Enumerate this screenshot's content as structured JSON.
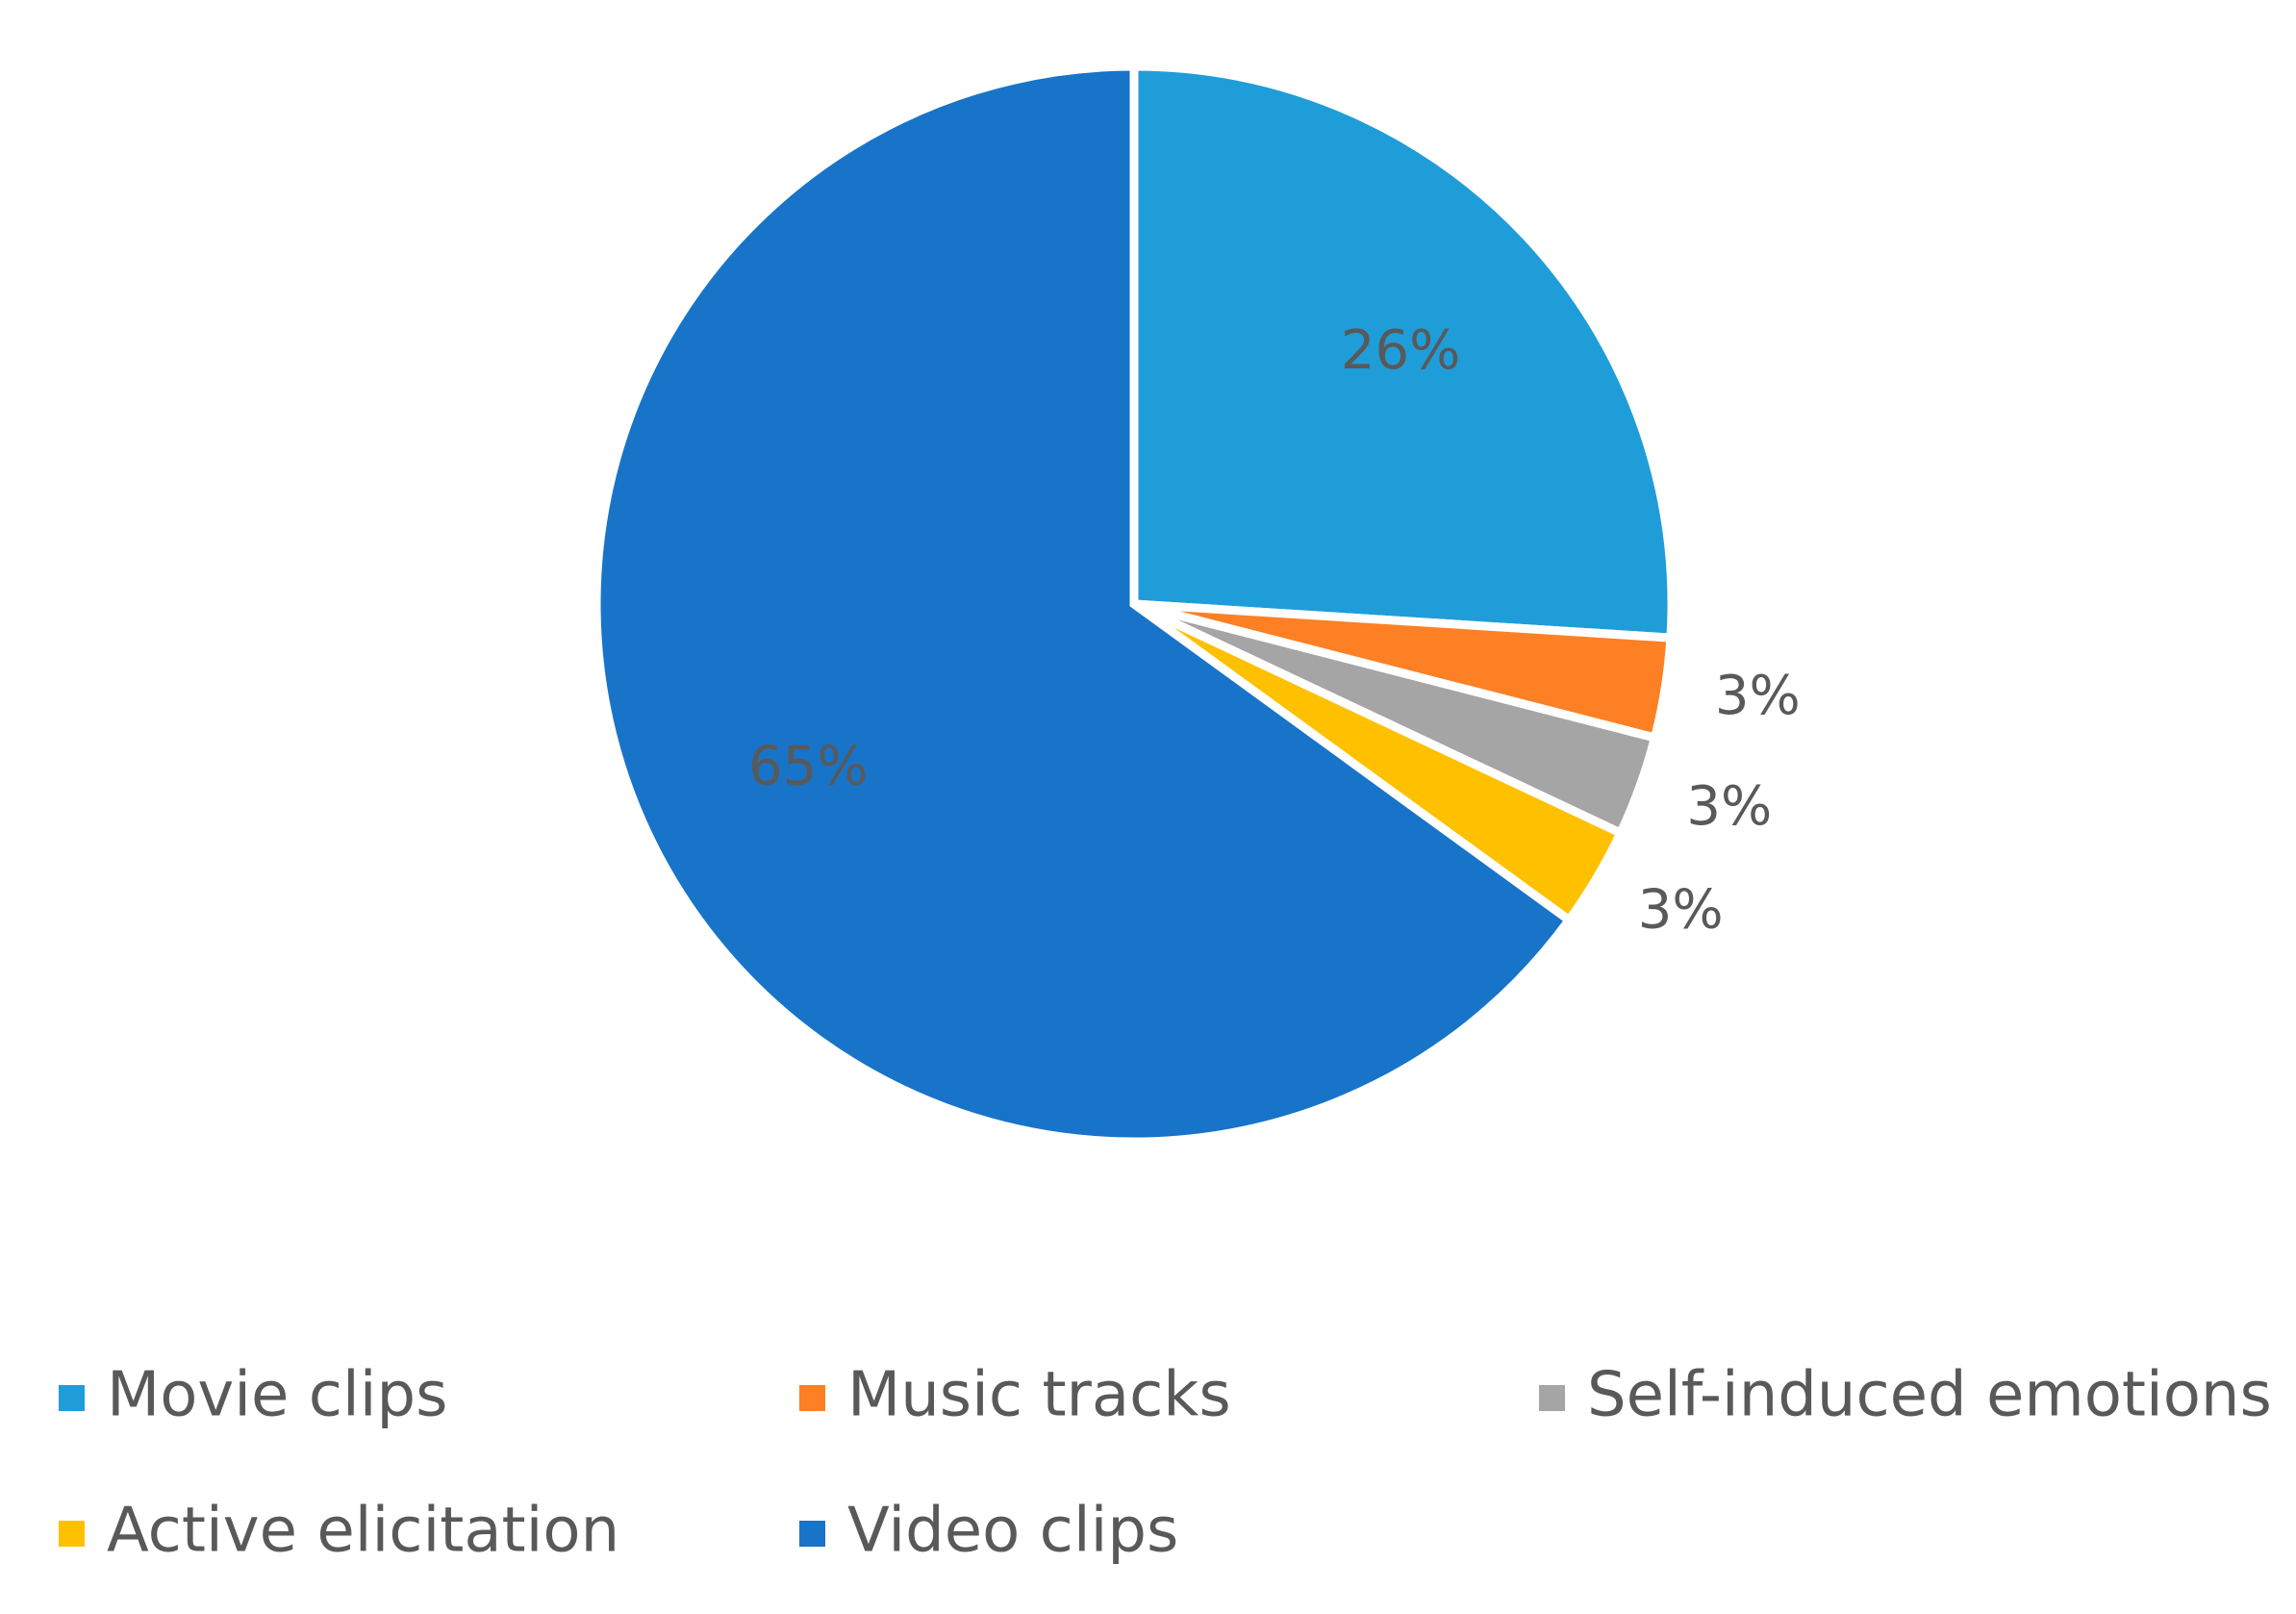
{
  "chart_data": {
    "type": "pie",
    "categories": [
      "Movie clips",
      "Music tracks",
      "Self-induced emotions",
      "Active elicitation",
      "Video clips"
    ],
    "values": [
      26,
      3,
      3,
      3,
      65
    ],
    "value_labels": [
      "26%",
      "3%",
      "3%",
      "3%",
      "65%"
    ],
    "colors": [
      "#1f9dd9",
      "#fd8024",
      "#a5a5a5",
      "#ffc000",
      "#1874c8"
    ],
    "legend": "bottom"
  }
}
